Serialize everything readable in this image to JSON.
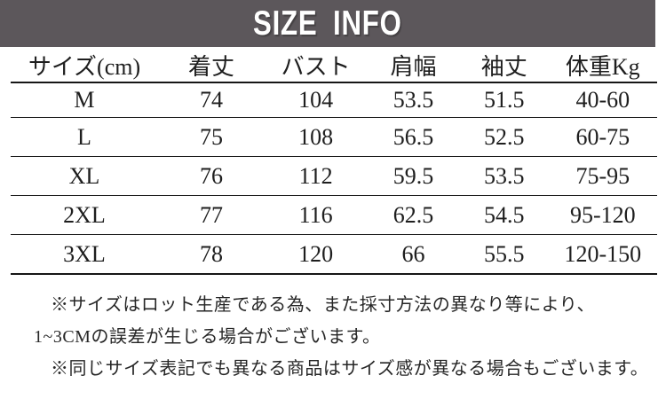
{
  "banner": {
    "title": "SIZE INFO",
    "background_color": "#5c575b",
    "text_color": "#ffffff"
  },
  "table": {
    "headers": [
      "サイズ(cm)",
      "着丈",
      "バスト",
      "肩幅",
      "袖丈",
      "体重Kg"
    ],
    "rows": [
      [
        "M",
        "74",
        "104",
        "53.5",
        "51.5",
        "40-60"
      ],
      [
        "L",
        "75",
        "108",
        "56.5",
        "52.5",
        "60-75"
      ],
      [
        "XL",
        "76",
        "112",
        "59.5",
        "53.5",
        "75-95"
      ],
      [
        "2XL",
        "77",
        "116",
        "62.5",
        "54.5",
        "95-120"
      ],
      [
        "3XL",
        "78",
        "120",
        "66",
        "55.5",
        "120-150"
      ]
    ],
    "line_color": "#161616"
  },
  "notes": [
    "※サイズはロット生産である為、また採寸方法の異なり等により、",
    "1~3CMの誤差が生じる場合がございます。",
    "※同じサイズ表記でも異なる商品はサイズ感が異なる場合もございます。"
  ]
}
